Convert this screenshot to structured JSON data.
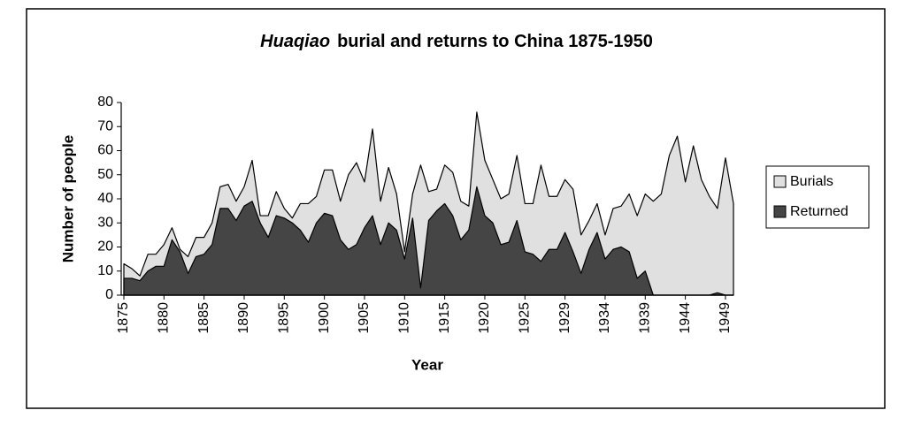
{
  "chart_data": {
    "type": "area",
    "title_italic": "Huaqiao",
    "title": "burial and returns to China 1875-1950",
    "x_label": "Year",
    "y_label": "Number of people",
    "categories": [
      "1875",
      null,
      null,
      null,
      null,
      "1880",
      null,
      null,
      null,
      null,
      "1885",
      null,
      null,
      null,
      null,
      "1890",
      null,
      null,
      null,
      null,
      "1895",
      null,
      null,
      null,
      null,
      "1900",
      null,
      null,
      null,
      null,
      "1905",
      null,
      null,
      null,
      null,
      "1910",
      null,
      null,
      null,
      null,
      "1915",
      null,
      null,
      null,
      null,
      "1920",
      null,
      null,
      null,
      null,
      "1925",
      null,
      null,
      null,
      null,
      "1929",
      null,
      null,
      null,
      null,
      "1934",
      null,
      null,
      null,
      null,
      "1939",
      null,
      null,
      null,
      null,
      "1944",
      null,
      null,
      null,
      null,
      "1949",
      null
    ],
    "series": [
      {
        "name": "Burials",
        "color": "#e0e0e0",
        "values": [
          13,
          11,
          8,
          17,
          17,
          21,
          28,
          19,
          16,
          24,
          24,
          30,
          45,
          46,
          39,
          45,
          56,
          33,
          33,
          43,
          36,
          32,
          38,
          38,
          41,
          52,
          52,
          39,
          50,
          55,
          47,
          69,
          39,
          53,
          42,
          18,
          42,
          54,
          43,
          44,
          54,
          51,
          39,
          37,
          76,
          56,
          48,
          40,
          42,
          58,
          38,
          38,
          54,
          41,
          41,
          48,
          44,
          25,
          31,
          38,
          25,
          36,
          37,
          42,
          33,
          42,
          39,
          42,
          58,
          66,
          47,
          62,
          48,
          41,
          36,
          57,
          38
        ]
      },
      {
        "name": "Returned",
        "color": "#454545",
        "values": [
          7,
          7,
          6,
          10,
          12,
          12,
          23,
          18,
          9,
          16,
          17,
          21,
          36,
          36,
          31,
          37,
          39,
          30,
          24,
          33,
          32,
          30,
          27,
          22,
          30,
          34,
          33,
          23,
          19,
          21,
          28,
          33,
          21,
          30,
          27,
          15,
          32,
          3,
          31,
          35,
          38,
          33,
          23,
          27,
          45,
          33,
          30,
          21,
          22,
          31,
          18,
          17,
          14,
          19,
          19,
          26,
          18,
          9,
          19,
          26,
          15,
          19,
          20,
          18,
          7,
          10,
          0,
          0,
          0,
          0,
          0,
          0,
          0,
          0,
          1,
          0,
          0
        ]
      }
    ],
    "ylim": [
      0,
      80
    ],
    "yticks": [
      0,
      10,
      20,
      30,
      40,
      50,
      60,
      70,
      80
    ],
    "legend": "right"
  }
}
